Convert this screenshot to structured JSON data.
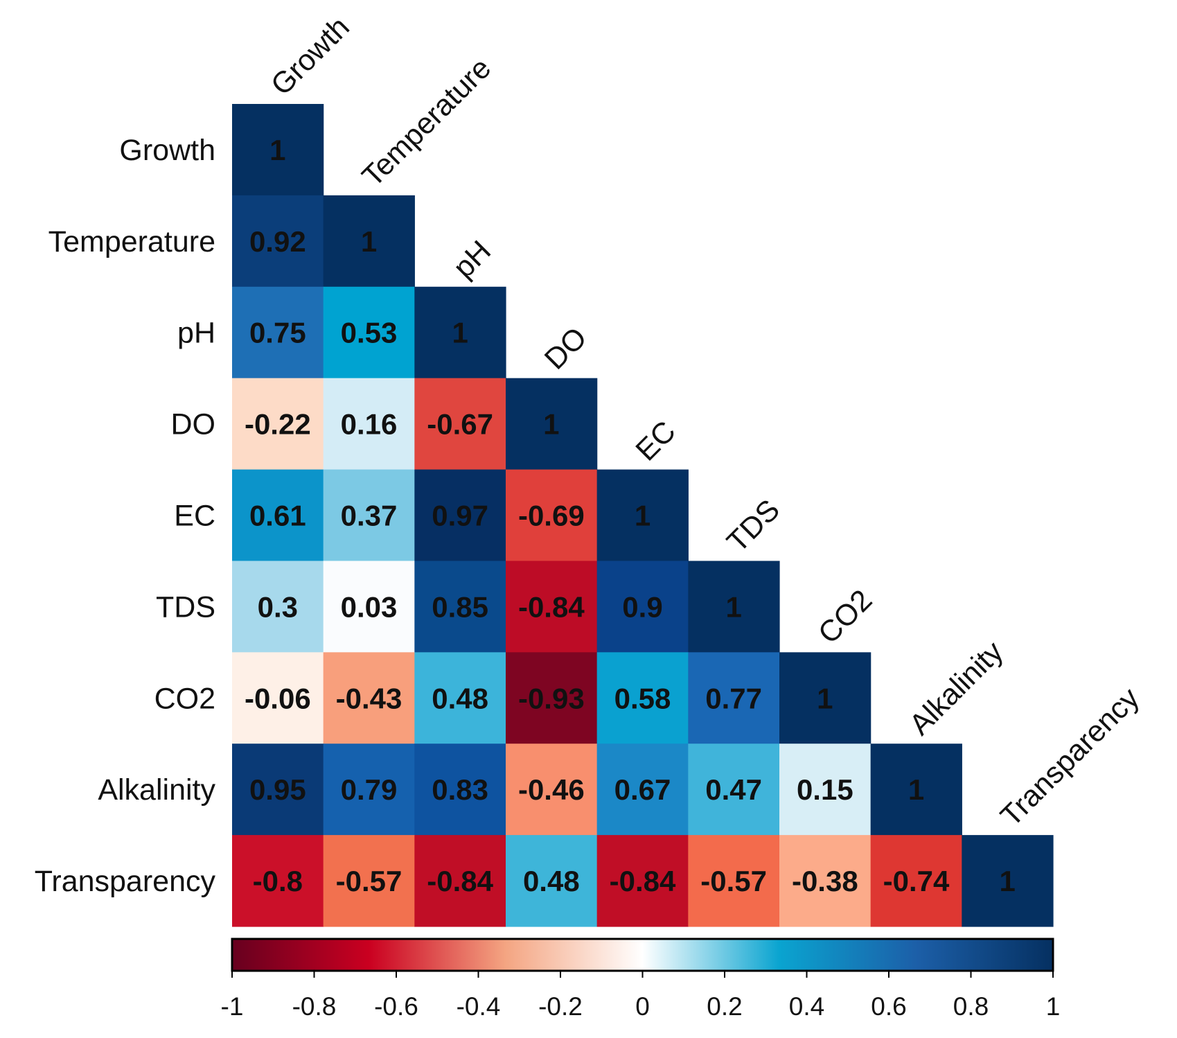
{
  "chart_data": {
    "type": "heatmap",
    "subtype": "lower-triangular correlation matrix",
    "variables": [
      "Growth",
      "Temperature",
      "pH",
      "DO",
      "EC",
      "TDS",
      "CO2",
      "Alkalinity",
      "Transparency"
    ],
    "row_labels": [
      "Growth",
      "Temperature",
      "pH",
      "DO",
      "EC",
      "TDS",
      "CO2",
      "Alkalinity",
      "Transparency"
    ],
    "column_labels": [
      "Growth",
      "Temperature",
      "pH",
      "DO",
      "EC",
      "TDS",
      "CO2",
      "Alkalinity",
      "Transparency"
    ],
    "matrix_labels": [
      [
        "1"
      ],
      [
        "0.92",
        "1"
      ],
      [
        "0.75",
        "0.53",
        "1"
      ],
      [
        "-0.22",
        "0.16",
        "-0.67",
        "1"
      ],
      [
        "0.61",
        "0.37",
        "0.97",
        "-0.69",
        "1"
      ],
      [
        "0.3",
        "0.03",
        "0.85",
        "-0.84",
        "0.9",
        "1"
      ],
      [
        "-0.06",
        "-0.43",
        "0.48",
        "-0.93",
        "0.58",
        "0.77",
        "1"
      ],
      [
        "0.95",
        "0.79",
        "0.83",
        "-0.46",
        "0.67",
        "0.47",
        "0.15",
        "1"
      ],
      [
        "-0.8",
        "-0.57",
        "-0.84",
        "0.48",
        "-0.84",
        "-0.57",
        "-0.38",
        "-0.74",
        "1"
      ]
    ],
    "colorbar": {
      "range": [
        -1,
        1
      ],
      "ticks": [
        -1,
        -0.8,
        -0.6,
        -0.4,
        -0.2,
        0,
        0.2,
        0.4,
        0.6,
        0.8,
        1
      ],
      "tick_labels": [
        "-1",
        "-0.8",
        "-0.6",
        "-0.4",
        "-0.2",
        "0",
        "0.2",
        "0.4",
        "0.6",
        "0.8",
        "1"
      ],
      "placement": "bottom"
    },
    "palette": {
      "stops": [
        "#67001F",
        "#B2182B",
        "#D6604D",
        "#F4A582",
        "#FDDBC7",
        "#FFFFFF",
        "#D1E5F0",
        "#92C5DE",
        "#4393C3",
        "#2166AC",
        "#053061"
      ],
      "colorbar_stops": [
        "#67001F",
        "#CA0020",
        "#F4A582",
        "#FFFFFF",
        "#0AA4D0",
        "#1C5FA8",
        "#053061"
      ],
      "cell_colors": [
        [
          "#053061"
        ],
        [
          "#0B3E7A",
          "#053061"
        ],
        [
          "#1E6FB5",
          "#00A3D1",
          "#053061"
        ],
        [
          "#FDDBC7",
          "#D4ECF6",
          "#E0463F",
          "#053061"
        ],
        [
          "#0C94CA",
          "#7CC9E4",
          "#062F63",
          "#E0403B",
          "#053061"
        ],
        [
          "#A7D9EC",
          "#FAFCFE",
          "#0A4A8C",
          "#BD0C26",
          "#0A428A",
          "#053061"
        ],
        [
          "#FEF0E7",
          "#F89F7C",
          "#3CB4DA",
          "#7E0522",
          "#0AA1D0",
          "#1A67B4",
          "#053061"
        ],
        [
          "#0A3A76",
          "#1561AE",
          "#0E53A0",
          "#F88F6E",
          "#1B88C7",
          "#40B4DA",
          "#D8EEF6",
          "#053061"
        ],
        [
          "#CB1029",
          "#F2714F",
          "#C00E26",
          "#3EB5D9",
          "#C00E26",
          "#F36B4C",
          "#FCAB8A",
          "#DE3732",
          "#053061"
        ]
      ],
      "label_color": "#111111",
      "outline_color": "#000000"
    }
  }
}
